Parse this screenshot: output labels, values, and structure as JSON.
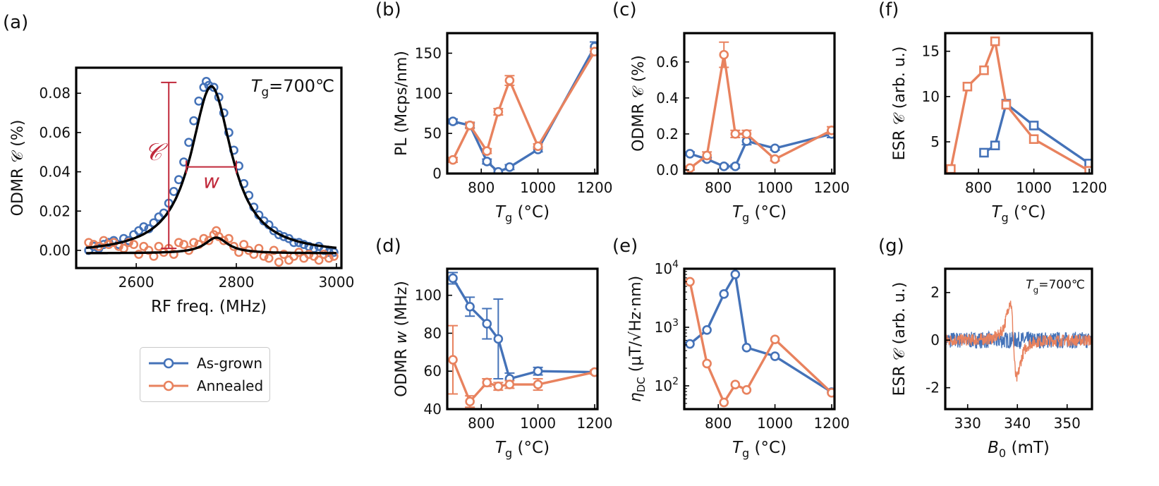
{
  "colors": {
    "as_grown": "#4472b8",
    "annealed": "#e8825e",
    "axis": "#000000",
    "annotation": "#c0283a"
  },
  "legend": {
    "as_grown": "As-grown",
    "annealed": "Annealed"
  },
  "chart_data": [
    {
      "id": "a",
      "panel_label": "(a)",
      "type": "scatter",
      "xlabel": "RF freq. (MHz)",
      "ylabel": "ODMR 𝒞 (%)",
      "xlim": [
        2480,
        3010
      ],
      "ylim": [
        -0.009,
        0.093
      ],
      "xticks": [
        2600,
        2800,
        3000
      ],
      "yticks": [
        0.0,
        0.02,
        0.04,
        0.06,
        0.08
      ],
      "ytick_format": 2,
      "annotation": "T_g=700℃",
      "contrast_label": "𝒞",
      "width_label": "w",
      "fit": {
        "as_grown": {
          "amplitude": 0.0855,
          "center": 2750,
          "hwhm": 50,
          "offset": -0.002
        },
        "annealed": {
          "amplitude": 0.008,
          "center": 2760,
          "hwhm": 28,
          "offset": -0.0015
        }
      },
      "series": [
        {
          "name": "As-grown",
          "x": [
            2505,
            2515,
            2525,
            2535,
            2545,
            2555,
            2565,
            2575,
            2585,
            2595,
            2605,
            2615,
            2625,
            2635,
            2645,
            2655,
            2665,
            2675,
            2685,
            2695,
            2705,
            2715,
            2725,
            2735,
            2740,
            2745,
            2755,
            2765,
            2775,
            2785,
            2795,
            2805,
            2815,
            2825,
            2835,
            2845,
            2855,
            2865,
            2875,
            2885,
            2895,
            2905,
            2915,
            2925,
            2935,
            2945,
            2955,
            2965,
            2975,
            2985,
            2995
          ],
          "y": [
            0.0,
            0.002,
            0.001,
            0.003,
            0.004,
            0.005,
            0.003,
            0.006,
            0.005,
            0.008,
            0.01,
            0.012,
            0.011,
            0.014,
            0.017,
            0.019,
            0.024,
            0.03,
            0.036,
            0.045,
            0.055,
            0.066,
            0.076,
            0.083,
            0.086,
            0.084,
            0.083,
            0.078,
            0.07,
            0.06,
            0.051,
            0.043,
            0.034,
            0.028,
            0.022,
            0.018,
            0.015,
            0.013,
            0.01,
            0.008,
            0.007,
            0.006,
            0.004,
            0.004,
            0.003,
            0.002,
            0.001,
            0.002,
            0.0,
            -0.001,
            -0.001
          ]
        },
        {
          "name": "Annealed",
          "x": [
            2505,
            2515,
            2525,
            2535,
            2545,
            2555,
            2565,
            2575,
            2585,
            2595,
            2605,
            2615,
            2625,
            2635,
            2645,
            2655,
            2665,
            2675,
            2685,
            2695,
            2705,
            2715,
            2725,
            2735,
            2745,
            2755,
            2760,
            2765,
            2775,
            2785,
            2795,
            2805,
            2815,
            2825,
            2835,
            2845,
            2855,
            2865,
            2875,
            2885,
            2895,
            2905,
            2915,
            2925,
            2935,
            2945,
            2955,
            2965,
            2975,
            2985,
            2995
          ],
          "y": [
            0.004,
            0.003,
            0.002,
            0.005,
            0.003,
            0.004,
            0.002,
            0.001,
            0.004,
            0.003,
            -0.002,
            0.002,
            0.0,
            -0.003,
            0.002,
            -0.001,
            0.001,
            -0.002,
            0.004,
            0.003,
            0.0,
            0.004,
            0.003,
            0.006,
            0.005,
            0.008,
            0.01,
            0.007,
            0.005,
            0.006,
            0.002,
            -0.001,
            0.003,
            0.0,
            -0.002,
            0.001,
            -0.003,
            -0.004,
            0.0,
            -0.006,
            -0.002,
            -0.005,
            -0.003,
            -0.001,
            -0.004,
            -0.002,
            -0.003,
            -0.005,
            -0.002,
            -0.004,
            -0.003
          ]
        }
      ]
    },
    {
      "id": "b",
      "panel_label": "(b)",
      "type": "line",
      "xlabel": "T_g (°C)",
      "ylabel": "PL (Mcps/nm)",
      "xlim": [
        680,
        1210
      ],
      "ylim": [
        0,
        175
      ],
      "xticks": [
        800,
        1000,
        1200
      ],
      "yticks": [
        0,
        50,
        100,
        150
      ],
      "marker": "circle",
      "series": [
        {
          "name": "As-grown",
          "x": [
            700,
            760,
            820,
            860,
            900,
            1000,
            1200
          ],
          "y": [
            65,
            60,
            15,
            2,
            8,
            30,
            158
          ],
          "err": [
            3,
            3,
            3,
            3,
            3,
            3,
            6
          ]
        },
        {
          "name": "Annealed",
          "x": [
            700,
            760,
            820,
            860,
            900,
            1000,
            1200
          ],
          "y": [
            17,
            60,
            28,
            77,
            116,
            34,
            152
          ],
          "err": [
            3,
            4,
            3,
            4,
            6,
            3,
            4
          ]
        }
      ]
    },
    {
      "id": "c",
      "panel_label": "(c)",
      "type": "line",
      "xlabel": "T_g (°C)",
      "ylabel": "ODMR 𝒞 (%)",
      "xlim": [
        680,
        1210
      ],
      "ylim": [
        -0.02,
        0.76
      ],
      "xticks": [
        800,
        1000,
        1200
      ],
      "yticks": [
        0.0,
        0.2,
        0.4,
        0.6
      ],
      "ytick_format": 1,
      "marker": "circle",
      "series": [
        {
          "name": "As-grown",
          "x": [
            700,
            760,
            820,
            860,
            900,
            1000,
            1200
          ],
          "y": [
            0.09,
            0.06,
            0.02,
            0.02,
            0.16,
            0.12,
            0.2
          ],
          "err": [
            0.01,
            0.01,
            0.01,
            0.01,
            0.02,
            0.01,
            0.02
          ]
        },
        {
          "name": "Annealed",
          "x": [
            700,
            760,
            820,
            860,
            900,
            1000,
            1200
          ],
          "y": [
            0.01,
            0.08,
            0.64,
            0.2,
            0.2,
            0.06,
            0.22
          ],
          "err": [
            0.01,
            0.02,
            0.07,
            0.02,
            0.02,
            0.01,
            0.02
          ]
        }
      ]
    },
    {
      "id": "f",
      "panel_label": "(f)",
      "type": "line",
      "xlabel": "T_g (°C)",
      "ylabel": "ESR 𝒞 (arb. u.)",
      "xlim": [
        680,
        1210
      ],
      "ylim": [
        1.5,
        17
      ],
      "xticks": [
        800,
        1000,
        1200
      ],
      "yticks": [
        5,
        10,
        15
      ],
      "marker": "square",
      "series": [
        {
          "name": "As-grown",
          "x": [
            820,
            860,
            900,
            1000,
            1200
          ],
          "y": [
            3.8,
            4.6,
            9.2,
            6.8,
            2.6
          ]
        },
        {
          "name": "Annealed",
          "x": [
            700,
            760,
            820,
            860,
            900,
            1000,
            1200
          ],
          "y": [
            2.0,
            11.1,
            12.9,
            16.1,
            9.1,
            5.3,
            1.8
          ]
        }
      ]
    },
    {
      "id": "d",
      "panel_label": "(d)",
      "type": "line",
      "xlabel": "T_g (°C)",
      "ylabel": "ODMR w (MHz)",
      "xlim": [
        680,
        1210
      ],
      "ylim": [
        40,
        114
      ],
      "xticks": [
        800,
        1000,
        1200
      ],
      "yticks": [
        40,
        60,
        80,
        100
      ],
      "marker": "circle",
      "series": [
        {
          "name": "As-grown",
          "x": [
            700,
            760,
            820,
            860,
            900,
            1000,
            1200
          ],
          "y": [
            109,
            94,
            85,
            77,
            56,
            60,
            59.5
          ],
          "err": [
            3,
            5,
            8,
            21,
            3,
            2,
            1
          ]
        },
        {
          "name": "Annealed",
          "x": [
            700,
            760,
            820,
            860,
            900,
            1000,
            1200
          ],
          "y": [
            66,
            44,
            54,
            52,
            53,
            53,
            59.5
          ],
          "err": [
            18,
            3,
            2,
            2,
            2,
            3,
            1
          ]
        }
      ]
    },
    {
      "id": "e",
      "panel_label": "(e)",
      "type": "line",
      "yscale": "log",
      "xlabel": "T_g (°C)",
      "ylabel": "η_DC (μT/√Hz·nm)",
      "xlim": [
        680,
        1210
      ],
      "ylim": [
        40,
        10000
      ],
      "xticks": [
        800,
        1000,
        1200
      ],
      "yticks": [
        100,
        1000,
        10000
      ],
      "marker": "circle",
      "series": [
        {
          "name": "As-grown",
          "x": [
            700,
            760,
            820,
            860,
            900,
            1000,
            1200
          ],
          "y": [
            520,
            900,
            3700,
            8000,
            450,
            320,
            78
          ]
        },
        {
          "name": "Annealed",
          "x": [
            700,
            760,
            820,
            860,
            900,
            1000,
            1200
          ],
          "y": [
            6000,
            240,
            52,
            105,
            85,
            620,
            76
          ]
        }
      ]
    },
    {
      "id": "g",
      "panel_label": "(g)",
      "type": "line",
      "xlabel": "B_0 (mT)",
      "ylabel": "ESR 𝒞 (arb. u.)",
      "xlim": [
        325.5,
        355
      ],
      "ylim": [
        -2.9,
        3.0
      ],
      "xticks": [
        330,
        340,
        350
      ],
      "yticks": [
        -2,
        0,
        2
      ],
      "annotation": "T_g=700℃",
      "series": [
        {
          "name": "As-grown",
          "x_range": [
            325.5,
            355
          ],
          "noise": 0.35
        },
        {
          "name": "Annealed",
          "x_range": [
            325.5,
            355
          ],
          "noise": 0.25,
          "peak_center": 339.2,
          "peak_amplitude": 2.3,
          "peak_width": 1.15
        }
      ]
    }
  ]
}
